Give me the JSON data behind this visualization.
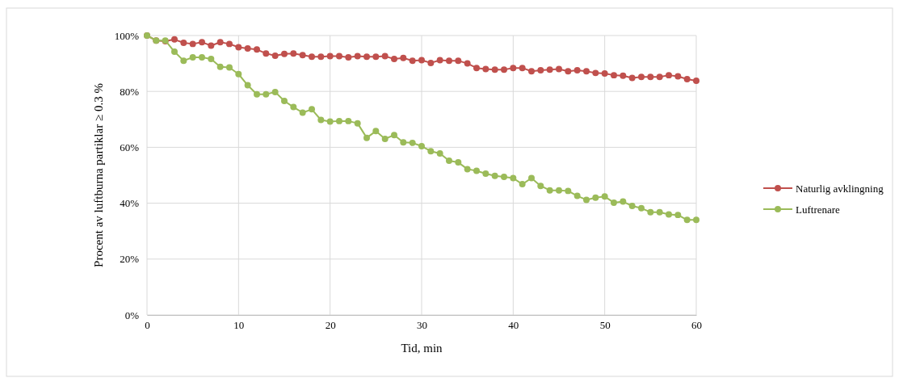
{
  "chart_data": {
    "type": "line",
    "xlabel": "Tid, min",
    "ylabel": "Procent av luftburna partiklar ≥ 0.3 %",
    "x": [
      0,
      1,
      2,
      3,
      4,
      5,
      6,
      7,
      8,
      9,
      10,
      11,
      12,
      13,
      14,
      15,
      16,
      17,
      18,
      19,
      20,
      21,
      22,
      23,
      24,
      25,
      26,
      27,
      28,
      29,
      30,
      31,
      32,
      33,
      34,
      35,
      36,
      37,
      38,
      39,
      40,
      41,
      42,
      43,
      44,
      45,
      46,
      47,
      48,
      49,
      50,
      51,
      52,
      53,
      54,
      55,
      56,
      57,
      58,
      59,
      60
    ],
    "series": [
      {
        "name": "Naturlig avklingning",
        "color": "#c0504d",
        "values": [
          100,
          98.2,
          98,
          98.6,
          97.4,
          97,
          97.6,
          96.4,
          97.6,
          97,
          95.8,
          95.4,
          95,
          93.6,
          92.8,
          93.4,
          93.6,
          93,
          92.4,
          92.4,
          92.6,
          92.6,
          92.2,
          92.6,
          92.4,
          92.4,
          92.6,
          91.6,
          92,
          91,
          91.2,
          90.2,
          91.2,
          91,
          91,
          90,
          88.4,
          88,
          87.8,
          87.8,
          88.4,
          88.4,
          87.2,
          87.6,
          87.8,
          88,
          87.2,
          87.6,
          87.2,
          86.6,
          86.4,
          85.8,
          85.6,
          84.8,
          85.2,
          85.2,
          85.2,
          85.8,
          85.4,
          84.4,
          83.8
        ]
      },
      {
        "name": "Luftrenare",
        "color": "#9bbb59",
        "values": [
          100,
          98.2,
          98.2,
          94.2,
          91,
          92.2,
          92.2,
          91.6,
          88.8,
          88.6,
          86.2,
          82.2,
          79,
          79,
          79.8,
          76.6,
          74.4,
          72.4,
          73.6,
          69.8,
          69.2,
          69.4,
          69.4,
          68.6,
          63.4,
          65.8,
          63,
          64.4,
          61.8,
          61.6,
          60.4,
          58.6,
          57.8,
          55.2,
          54.6,
          52.2,
          51.6,
          50.6,
          49.8,
          49.4,
          49,
          46.8,
          49,
          46.2,
          44.6,
          44.6,
          44.4,
          42.6,
          41.2,
          42,
          42.4,
          40.2,
          40.6,
          39,
          38.2,
          36.8,
          36.8,
          36,
          35.8,
          34,
          34
        ]
      }
    ],
    "xlim": [
      0,
      60
    ],
    "xticks": [
      0,
      10,
      20,
      30,
      40,
      50,
      60
    ],
    "ylim": [
      0,
      100
    ],
    "yticks": [
      {
        "value": 0,
        "label": "0%"
      },
      {
        "value": 20,
        "label": "20%"
      },
      {
        "value": 40,
        "label": "40%"
      },
      {
        "value": 60,
        "label": "60%"
      },
      {
        "value": 80,
        "label": "80%"
      },
      {
        "value": 100,
        "label": "100%"
      }
    ],
    "grid": true,
    "legend": "right",
    "marker": "circle",
    "line_style": "solid"
  }
}
